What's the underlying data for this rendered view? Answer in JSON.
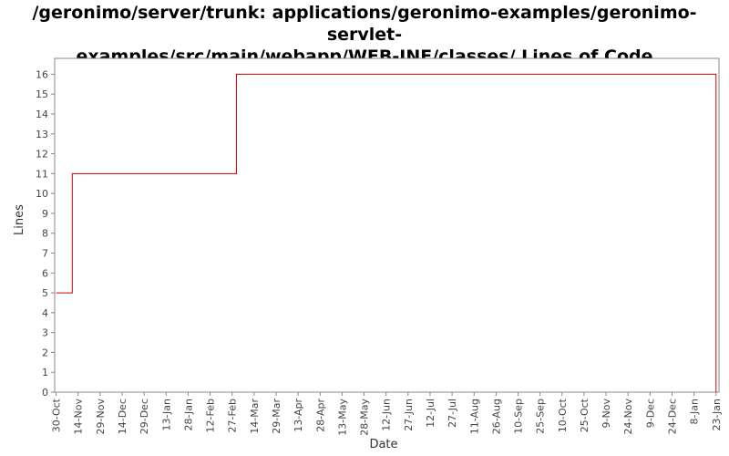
{
  "chart_data": {
    "type": "line",
    "step": true,
    "title_lines": [
      "/geronimo/server/trunk: applications/geronimo-examples/geronimo-servlet-",
      "examples/src/main/webapp/WEB-INF/classes/ Lines of Code"
    ],
    "xlabel": "Date",
    "ylabel": "Lines",
    "ylim": [
      0,
      16.8
    ],
    "yticks": [
      0,
      1,
      2,
      3,
      4,
      5,
      6,
      7,
      8,
      9,
      10,
      11,
      12,
      13,
      14,
      15,
      16
    ],
    "xticks": [
      "30-Oct",
      "14-Nov",
      "29-Nov",
      "14-Dec",
      "29-Dec",
      "13-Jan",
      "28-Jan",
      "12-Feb",
      "27-Feb",
      "14-Mar",
      "29-Mar",
      "13-Apr",
      "28-Apr",
      "13-May",
      "28-May",
      "12-Jun",
      "27-Jun",
      "12-Jul",
      "27-Jul",
      "11-Aug",
      "26-Aug",
      "10-Sep",
      "25-Sep",
      "10-Oct",
      "25-Oct",
      "9-Nov",
      "24-Nov",
      "9-Dec",
      "24-Dec",
      "8-Jan",
      "23-Jan"
    ],
    "tick_interval_days": 15,
    "xlim": [
      "29-Oct",
      "25-Jan"
    ],
    "grid": false,
    "line_color": "#cc0000",
    "series": [
      {
        "points": [
          {
            "x": "30-Oct",
            "y": 5
          },
          {
            "x": "10-Nov",
            "y": 11
          },
          {
            "x": "2-Mar",
            "y": 16
          },
          {
            "x": "23-Jan",
            "y": 16
          },
          {
            "x": "23-Jan",
            "y": 0
          }
        ]
      }
    ]
  }
}
